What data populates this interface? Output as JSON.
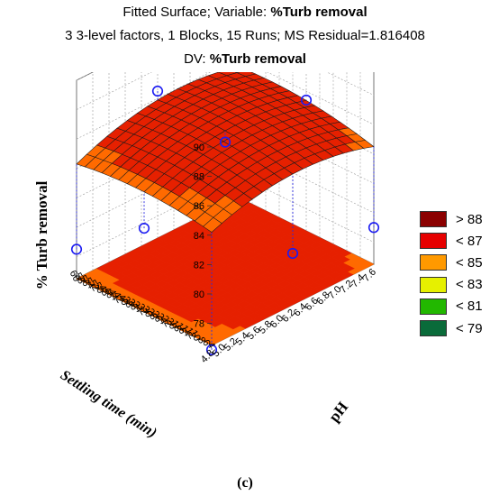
{
  "chart_data": {
    "type": "surface3d",
    "title_prefix": "Fitted Surface; Variable: ",
    "title_var": "%Turb removal",
    "subtitle": "3 3-level factors, 1 Blocks, 15 Runs; MS Residual=1.816408",
    "dv_prefix": "DV: ",
    "dv_var": "%Turb removal",
    "zlabel": "% Turb removal",
    "xlabel": "pH",
    "ylabel": "Settling time (min)",
    "z_ticks": [
      "90",
      "88",
      "86",
      "84",
      "82",
      "80",
      "78"
    ],
    "zlim": [
      76.5,
      90
    ],
    "x_ticks": [
      "7.6",
      "7.4",
      "7.2",
      "7.0",
      "6.8",
      "6.6",
      "6.4",
      "6.2",
      "6.0",
      "5.8",
      "5.6",
      "5.4",
      "5.2",
      "5.0",
      "4.8"
    ],
    "xlim": [
      4.8,
      7.6
    ],
    "y_ticks": [
      "60",
      "58",
      "56",
      "54",
      "52",
      "50",
      "48",
      "46",
      "44",
      "42",
      "40",
      "38",
      "36",
      "34",
      "32",
      "30",
      "28",
      "26",
      "24",
      "22",
      "20",
      "18",
      "16",
      "14",
      "12",
      "10",
      "8",
      "6",
      "4"
    ],
    "ylim": [
      4,
      60
    ],
    "legend": [
      {
        "label": "> 88",
        "color": "#8b0000"
      },
      {
        "label": "< 87",
        "color": "#e60000"
      },
      {
        "label": "< 85",
        "color": "#ff9900"
      },
      {
        "label": "< 83",
        "color": "#e6f000"
      },
      {
        "label": "< 81",
        "color": "#22b800"
      },
      {
        "label": "< 79",
        "color": "#0a6b3a"
      }
    ],
    "observed_points": [
      {
        "pH": 7.6,
        "time": 60,
        "removal": 89.6
      },
      {
        "pH": 6.2,
        "time": 60,
        "removal": 86.5
      },
      {
        "pH": 7.6,
        "time": 32,
        "removal": 85.4
      },
      {
        "pH": 6.2,
        "time": 32,
        "removal": 85.3
      },
      {
        "pH": 4.8,
        "time": 32,
        "removal": 82.2
      },
      {
        "pH": 6.2,
        "time": 4,
        "removal": 80.0
      },
      {
        "pH": 7.6,
        "time": 4,
        "removal": 79.0
      },
      {
        "pH": 4.8,
        "time": 60,
        "removal": 78.5
      },
      {
        "pH": 4.8,
        "time": 4,
        "removal": 76.2
      }
    ]
  },
  "caption": "(c)"
}
